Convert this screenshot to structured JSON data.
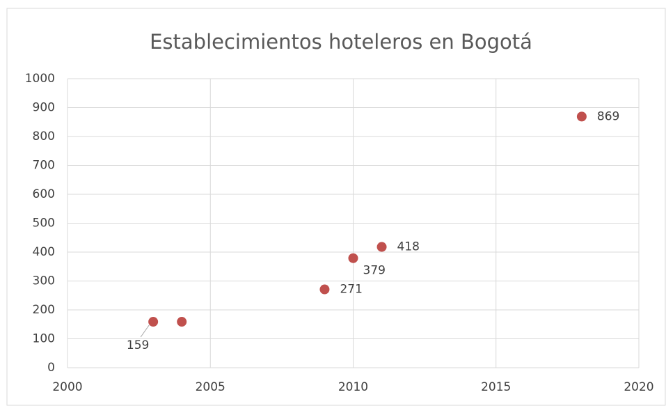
{
  "chart_data": {
    "type": "scatter",
    "title": "Establecimientos hoteleros en Bogotá",
    "x": [
      2003,
      2004,
      2009,
      2010,
      2011,
      2018
    ],
    "values": [
      159,
      159,
      271,
      379,
      418,
      869
    ],
    "value_labels": [
      "159",
      null,
      "271",
      "379",
      "418",
      "869"
    ],
    "color": "#c0504d",
    "xlim": [
      2000,
      2020
    ],
    "xticks": [
      2000,
      2005,
      2010,
      2015,
      2020
    ],
    "ylim": [
      0,
      1000
    ],
    "yticks": [
      0,
      100,
      200,
      300,
      400,
      500,
      600,
      700,
      800,
      900,
      1000
    ],
    "grid": true
  }
}
